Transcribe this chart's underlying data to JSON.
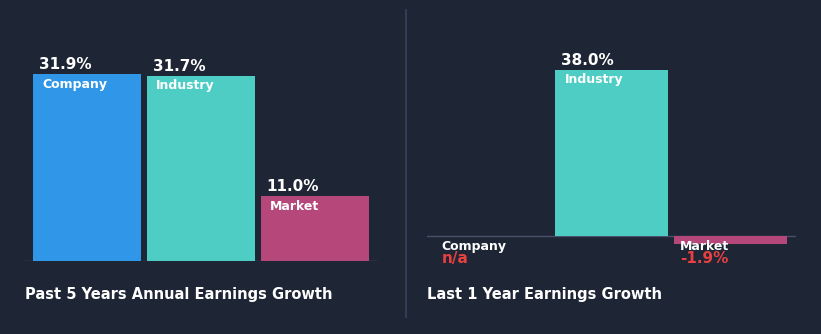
{
  "background_color": "#1e2535",
  "chart1": {
    "title": "Past 5 Years Annual Earnings Growth",
    "categories": [
      "Company",
      "Industry",
      "Market"
    ],
    "values": [
      31.9,
      31.7,
      11.0
    ],
    "colors": [
      "#2f96e8",
      "#4ecdc4",
      "#b5477a"
    ],
    "bar_labels": [
      "31.9%",
      "31.7%",
      "11.0%"
    ],
    "cat_labels": [
      "Company",
      "Industry",
      "Market"
    ]
  },
  "chart2": {
    "title": "Last 1 Year Earnings Growth",
    "categories": [
      "Company",
      "Industry",
      "Market"
    ],
    "values": [
      0,
      38.0,
      -1.9
    ],
    "colors": [
      "#2f96e8",
      "#4ecdc4",
      "#b5477a"
    ],
    "bar_labels": [
      "n/a",
      "38.0%",
      "-1.9%"
    ],
    "cat_labels": [
      "Company",
      "Industry",
      "Market"
    ]
  },
  "title_color": "#ffffff",
  "label_color": "#ffffff",
  "na_color": "#e84040",
  "neg_color": "#e84040",
  "title_fontsize": 10.5,
  "value_fontsize": 11,
  "cat_fontsize": 9,
  "divider_color": "#3a3f5c",
  "baseline_color": "#4a4f6a"
}
